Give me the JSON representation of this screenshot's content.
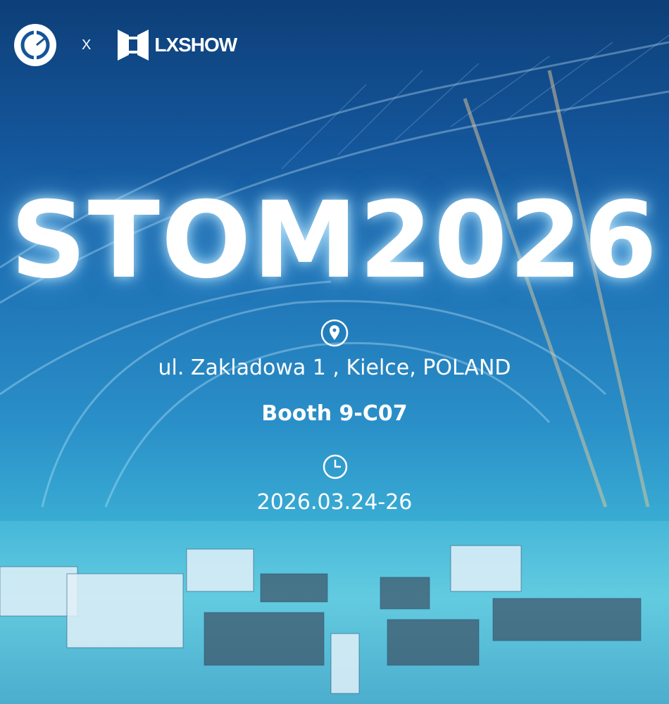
{
  "logos": {
    "partner": "STOM circular gear-leaf logo",
    "brand": "LXSHOW"
  },
  "separator": "X",
  "title": "STOM2026",
  "location": {
    "icon": "location-pin-icon",
    "address": "ul. Zakladowa 1 , Kielce, POLAND"
  },
  "booth": "Booth 9-C07",
  "date": {
    "icon": "clock-icon",
    "value": "2026.03.24-26"
  },
  "colors": {
    "text": "#ffffff",
    "sky": "#0d3f78",
    "floor": "#5cc6dc"
  }
}
